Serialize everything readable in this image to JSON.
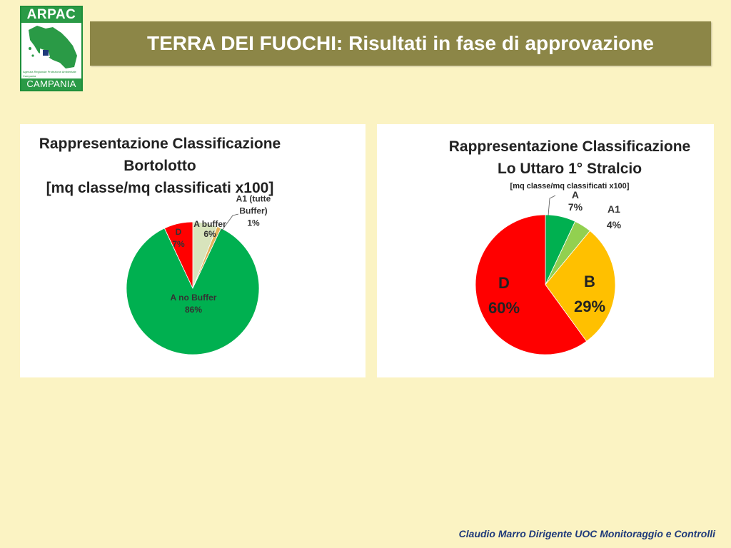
{
  "logo": {
    "top_text": "ARPAC",
    "bottom_text": "CAMPANIA",
    "sub_text": "Agenzia Regionale Protezione Ambientale Campania"
  },
  "header": {
    "title": "TERRA DEI FUOCHI: Risultati in fase di approvazione"
  },
  "footer": {
    "credit": "Claudio Marro Dirigente UOC Monitoraggio e Controlli"
  },
  "colors": {
    "background": "#FBF3C3",
    "title_bar": "#8C8647",
    "footer_text": "#1F3A7A"
  },
  "chart_data": [
    {
      "type": "pie",
      "title_lines": [
        "Rappresentazione Classificazione",
        "Bortolotto",
        "[mq classe/mq classificati x100]"
      ],
      "slices": [
        {
          "name": "A buffer",
          "value": 6,
          "pct_label": "6%",
          "color": "#D8E4BC"
        },
        {
          "name": "A1 (tutte Buffer)",
          "value": 1,
          "pct_label": "1%",
          "color": "#E3B35A"
        },
        {
          "name": "A no Buffer",
          "value": 86,
          "pct_label": "86%",
          "color": "#00B050"
        },
        {
          "name": "D",
          "value": 7,
          "pct_label": "7%",
          "color": "#FF0000"
        }
      ]
    },
    {
      "type": "pie",
      "title_lines": [
        "Rappresentazione Classificazione",
        "Lo Uttaro 1° Stralcio"
      ],
      "subtitle": "[mq classe/mq classificati x100]",
      "slices": [
        {
          "name": "A",
          "value": 7,
          "pct_label": "7%",
          "color": "#00B050"
        },
        {
          "name": "A1",
          "value": 4,
          "pct_label": "4%",
          "color": "#92D050"
        },
        {
          "name": "B",
          "value": 29,
          "pct_label": "29%",
          "color": "#FFC000"
        },
        {
          "name": "D",
          "value": 60,
          "pct_label": "60%",
          "color": "#FF0000"
        }
      ]
    }
  ]
}
